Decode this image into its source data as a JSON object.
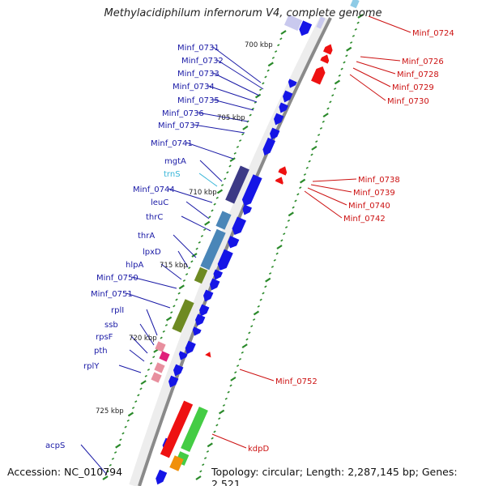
{
  "title": "Methylacidiphilum infernorum V4, complete genome",
  "footer": {
    "accession": "Accession: NC_010794",
    "summary": "Topology: circular; Length: 2,287,145 bp; Genes: 2,521"
  },
  "scale_labels": [
    "700 kbp",
    "705 kbp",
    "710 kbp",
    "715 kbp",
    "720 kbp",
    "725 kbp"
  ],
  "left_labels": [
    {
      "text": "Minf_0731",
      "color": "#1a1aa6"
    },
    {
      "text": "Minf_0732",
      "color": "#1a1aa6"
    },
    {
      "text": "Minf_0733",
      "color": "#1a1aa6"
    },
    {
      "text": "Minf_0734",
      "color": "#1a1aa6"
    },
    {
      "text": "Minf_0735",
      "color": "#1a1aa6"
    },
    {
      "text": "Minf_0736",
      "color": "#1a1aa6"
    },
    {
      "text": "Minf_0737",
      "color": "#1a1aa6"
    },
    {
      "text": "Minf_0741",
      "color": "#1a1aa6"
    },
    {
      "text": "mgtA",
      "color": "#1a1aa6"
    },
    {
      "text": "trnS",
      "color": "#35b5d8"
    },
    {
      "text": "Minf_0744",
      "color": "#1a1aa6"
    },
    {
      "text": "leuC",
      "color": "#1a1aa6"
    },
    {
      "text": "thrC",
      "color": "#1a1aa6"
    },
    {
      "text": "thrA",
      "color": "#1a1aa6"
    },
    {
      "text": "lpxD",
      "color": "#1a1aa6"
    },
    {
      "text": "hlpA",
      "color": "#1a1aa6"
    },
    {
      "text": "Minf_0750",
      "color": "#1a1aa6"
    },
    {
      "text": "Minf_0751",
      "color": "#1a1aa6"
    },
    {
      "text": "rplI",
      "color": "#1a1aa6"
    },
    {
      "text": "ssb",
      "color": "#1a1aa6"
    },
    {
      "text": "rpsF",
      "color": "#1a1aa6"
    },
    {
      "text": "pth",
      "color": "#1a1aa6"
    },
    {
      "text": "rplY",
      "color": "#1a1aa6"
    },
    {
      "text": "acpS",
      "color": "#1a1aa6"
    }
  ],
  "right_labels": [
    {
      "text": "Minf_0724",
      "color": "#cc1111"
    },
    {
      "text": "Minf_0726",
      "color": "#cc1111"
    },
    {
      "text": "Minf_0728",
      "color": "#cc1111"
    },
    {
      "text": "Minf_0729",
      "color": "#cc1111"
    },
    {
      "text": "Minf_0730",
      "color": "#cc1111"
    },
    {
      "text": "Minf_0738",
      "color": "#cc1111"
    },
    {
      "text": "Minf_0739",
      "color": "#cc1111"
    },
    {
      "text": "Minf_0740",
      "color": "#cc1111"
    },
    {
      "text": "Minf_0742",
      "color": "#cc1111"
    },
    {
      "text": "Minf_0752",
      "color": "#cc1111"
    },
    {
      "text": "kdpD",
      "color": "#cc1111"
    }
  ],
  "colors": {
    "forward_cds": "#1515e6",
    "reverse_cds": "#ee1111",
    "backbone": "#8a8a8a",
    "tick": "#2a8a2a",
    "cog_purple": "#3c3a86",
    "cog_steelblue": "#4a86b8",
    "cog_olive": "#6e8a22",
    "cog_pink": "#e88f9e",
    "cog_magenta": "#e0207a",
    "cog_red": "#ee1111",
    "cog_green": "#44cc44",
    "cog_orange": "#f0900a"
  }
}
